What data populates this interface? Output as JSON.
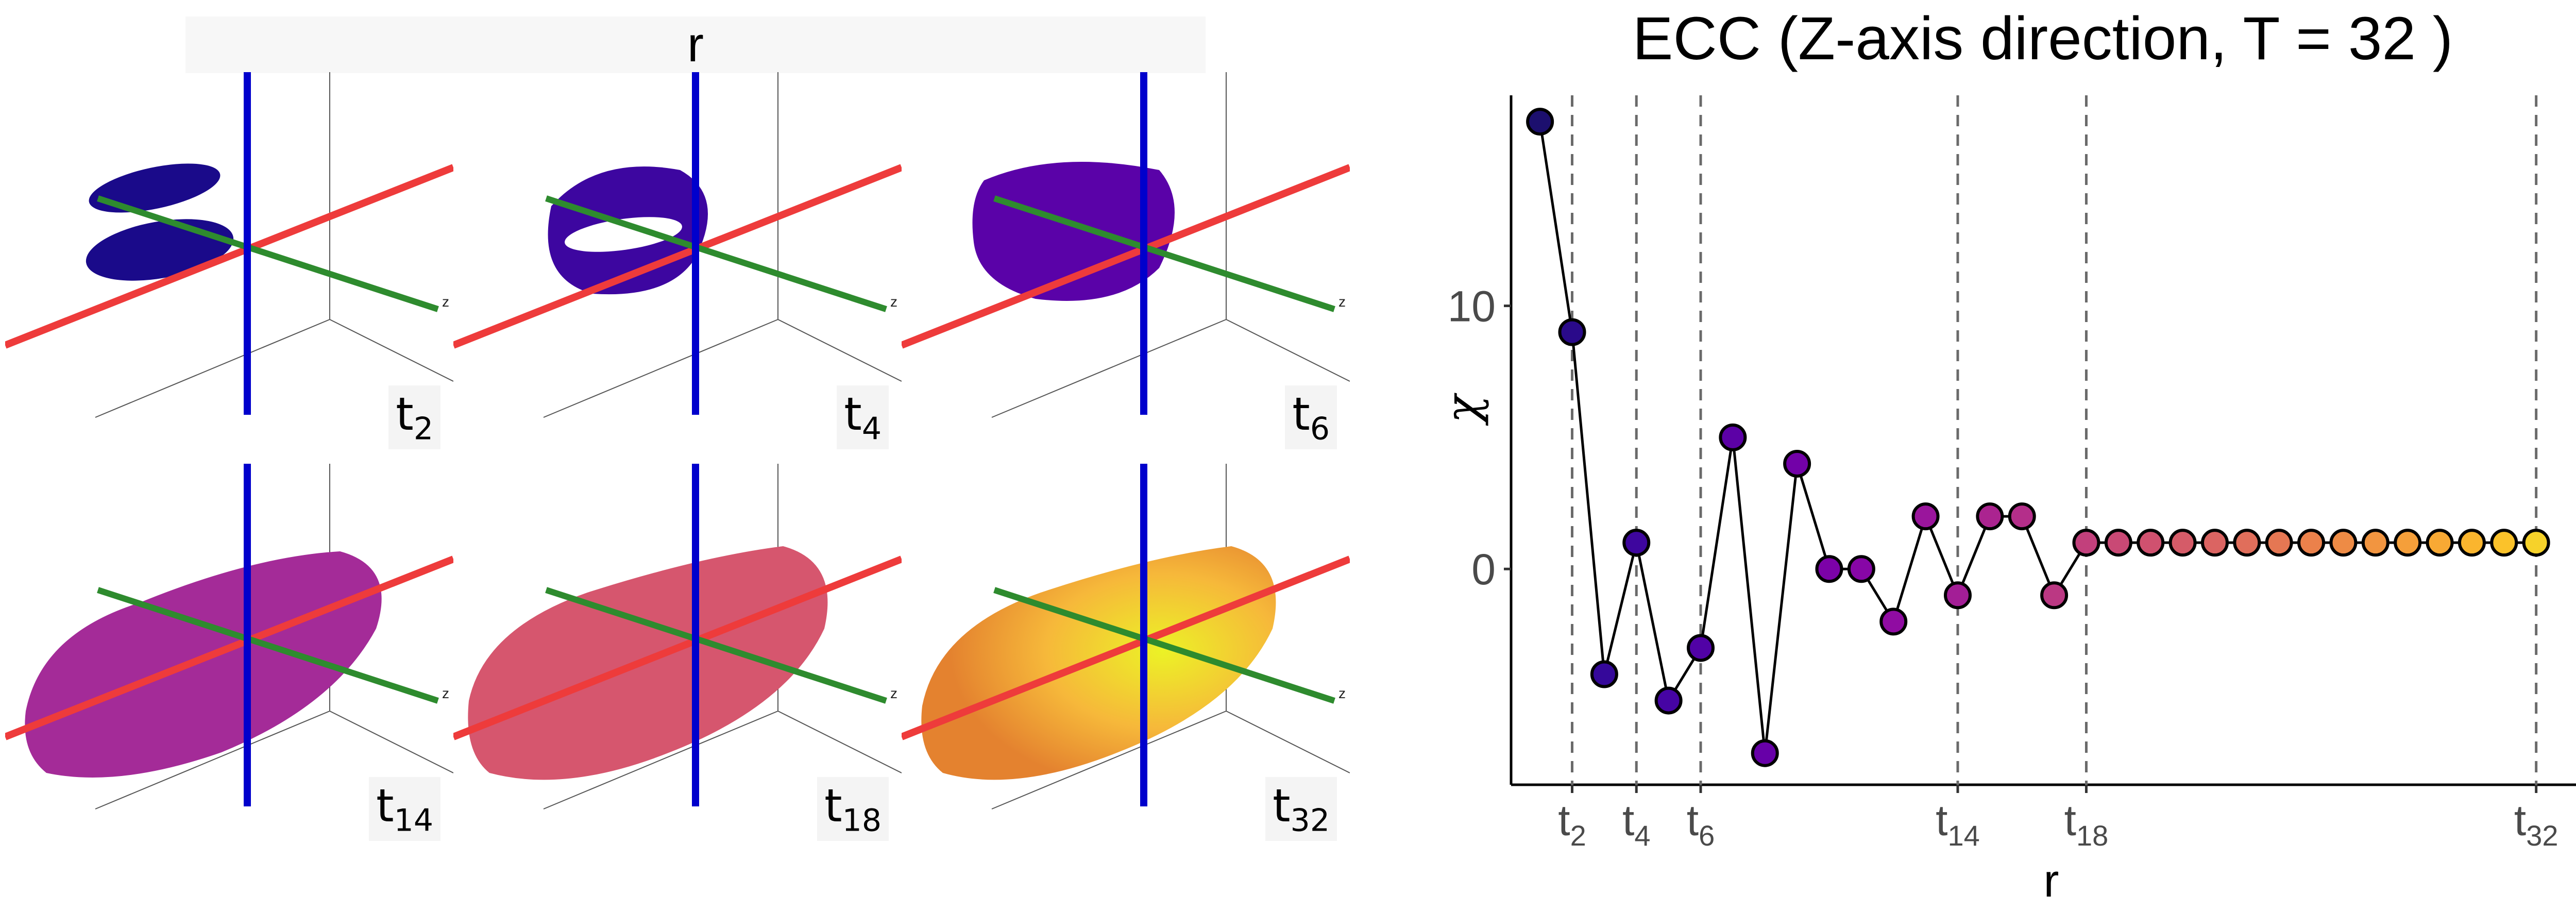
{
  "strip_title": "r",
  "panels": [
    {
      "label": "t",
      "sub": "2"
    },
    {
      "label": "t",
      "sub": "4"
    },
    {
      "label": "t",
      "sub": "6"
    },
    {
      "label": "t",
      "sub": "14"
    },
    {
      "label": "t",
      "sub": "18"
    },
    {
      "label": "t",
      "sub": "32"
    }
  ],
  "axis_tiny_label": "z",
  "colors": {
    "x_axis": "#ee3b3b",
    "y_axis": "#0000cc",
    "z_axis": "#2e8b2e",
    "t2": "#1a0a8a",
    "t4": "#3d06a0",
    "t6": "#5a02a8",
    "t14": "#a42b98",
    "t18": "#d6566e",
    "t32_inner": "#ecf226",
    "t32_outer": "#e4822f"
  },
  "chart_data": {
    "type": "scatter",
    "title": "ECC (Z-axis direction, T = 32 )",
    "xlabel": "r",
    "ylabel": "χ",
    "x": [
      1,
      2,
      3,
      4,
      5,
      6,
      7,
      8,
      9,
      10,
      11,
      12,
      13,
      14,
      15,
      16,
      17,
      18,
      19,
      20,
      21,
      22,
      23,
      24,
      25,
      26,
      27,
      28,
      29,
      30,
      31,
      32
    ],
    "values": [
      17,
      9,
      -4,
      1,
      -5,
      -3,
      5,
      -7,
      4,
      0,
      0,
      -2,
      2,
      -1,
      2,
      2,
      -1,
      1,
      1,
      1,
      1,
      1,
      1,
      1,
      1,
      1,
      1,
      1,
      1,
      1,
      1,
      1
    ],
    "colors": [
      "#1c0f6e",
      "#2a0a8a",
      "#35089a",
      "#3e069e",
      "#4604a4",
      "#5102a6",
      "#5c01a6",
      "#6700a8",
      "#7201a8",
      "#7c02a8",
      "#8706a6",
      "#900ca2",
      "#9a159c",
      "#a31e96",
      "#ab2490",
      "#b42e8a",
      "#bb3883",
      "#c2407c",
      "#c94975",
      "#d0516f",
      "#d55b68",
      "#db6462",
      "#e06e5b",
      "#e57753",
      "#eb814b",
      "#ee8b45",
      "#f29540",
      "#f59f3a",
      "#f8a934",
      "#fab52e",
      "#fbc22a",
      "#f6d22a"
    ],
    "vlines": [
      2,
      4,
      6,
      14,
      18,
      32
    ],
    "x_tick_labels": [
      {
        "x": 2,
        "label": "t",
        "sub": "2"
      },
      {
        "x": 4,
        "label": "t",
        "sub": "4"
      },
      {
        "x": 6,
        "label": "t",
        "sub": "6"
      },
      {
        "x": 14,
        "label": "t",
        "sub": "14"
      },
      {
        "x": 18,
        "label": "t",
        "sub": "18"
      },
      {
        "x": 32,
        "label": "t",
        "sub": "32"
      }
    ],
    "yticks": [
      0,
      10
    ],
    "xlim": [
      0.1,
      33.4
    ],
    "ylim": [
      -8.2,
      18.0
    ],
    "grid": false
  }
}
